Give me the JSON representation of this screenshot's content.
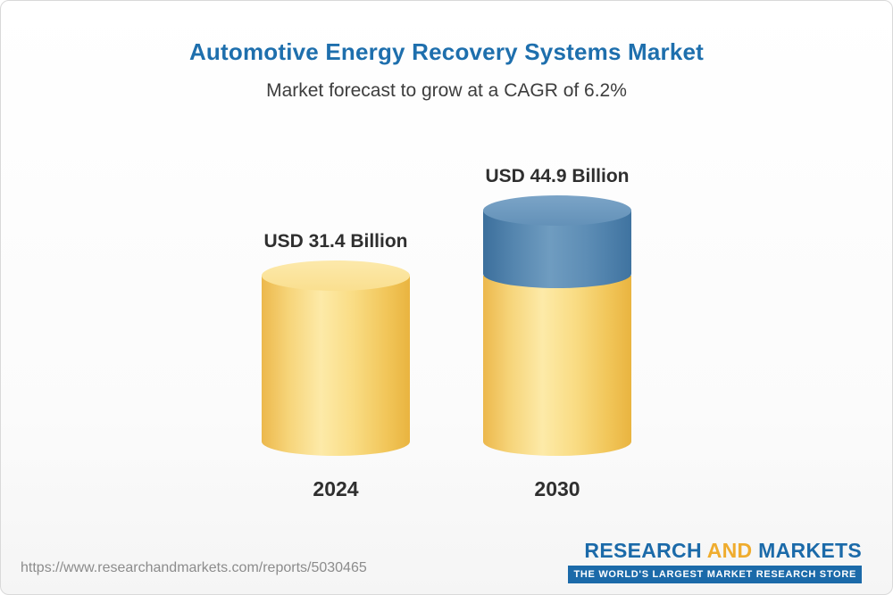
{
  "page": {
    "footer_url": "https://www.researchandmarkets.com/reports/5030465",
    "logo": {
      "word1": "RESEARCH",
      "word2": "AND",
      "word3": "MARKETS",
      "tagline": "THE WORLD'S LARGEST MARKET RESEARCH STORE"
    }
  },
  "chart_data": {
    "type": "bar",
    "title": "Automotive Energy Recovery Systems Market",
    "subtitle": "Market forecast to grow at a CAGR of 6.2%",
    "unit": "USD Billion",
    "cagr_percent": 6.2,
    "categories": [
      "2024",
      "2030"
    ],
    "values": [
      31.4,
      44.9
    ],
    "value_labels": [
      "USD 31.4 Billion",
      "USD 44.9 Billion"
    ],
    "bars": [
      {
        "category": "2024",
        "value": 31.4,
        "label": "USD 31.4 Billion",
        "segments": [
          {
            "name": "base",
            "color": "#f9dc85",
            "value": 31.4
          }
        ]
      },
      {
        "category": "2030",
        "value": 44.9,
        "label": "USD 44.9 Billion",
        "segments": [
          {
            "name": "base",
            "color": "#f9dc85",
            "value": 31.4
          },
          {
            "name": "growth",
            "color": "#5d8db5",
            "value": 13.5
          }
        ]
      }
    ],
    "colors": {
      "yellow": "#f9dc85",
      "blue": "#5d8db5",
      "title_blue": "#1e6fad"
    },
    "legend_position": "none",
    "grid": false
  }
}
